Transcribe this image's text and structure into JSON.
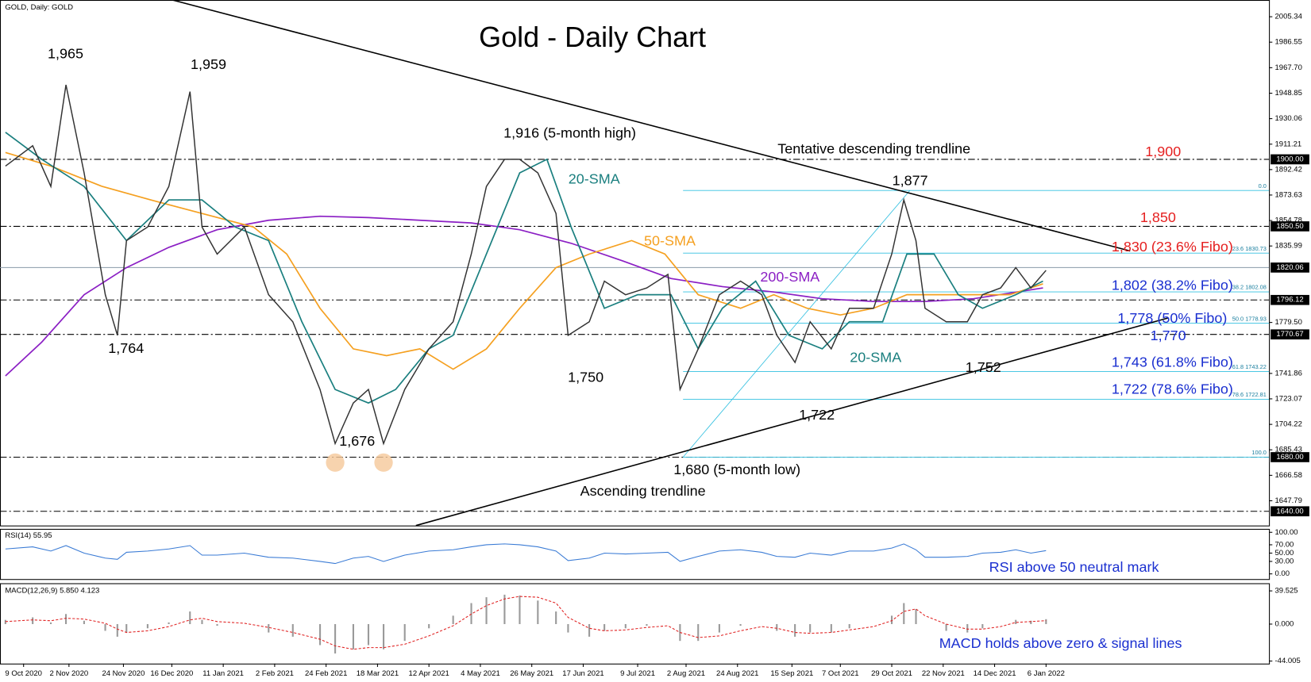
{
  "chart_data": {
    "type": "line",
    "title": "Gold - Daily Chart",
    "header": "GOLD, Daily: GOLD",
    "xlim": [
      -7.8,
      411.7
    ],
    "xticks": [
      {
        "value": 0,
        "label": "9 Oct 2020"
      },
      {
        "value": 15,
        "label": "2 Nov 2020"
      },
      {
        "value": 33,
        "label": "24 Nov 2020"
      },
      {
        "value": 49,
        "label": "16 Dec 2020"
      },
      {
        "value": 66,
        "label": "11 Jan 2021"
      },
      {
        "value": 83,
        "label": "2 Feb 2021"
      },
      {
        "value": 100,
        "label": "24 Feb 2021"
      },
      {
        "value": 117,
        "label": "18 Mar 2021"
      },
      {
        "value": 134,
        "label": "12 Apr 2021"
      },
      {
        "value": 151,
        "label": "4 May 2021"
      },
      {
        "value": 168,
        "label": "26 May 2021"
      },
      {
        "value": 185,
        "label": "17 Jun 2021"
      },
      {
        "value": 203,
        "label": "9 Jul 2021"
      },
      {
        "value": 219,
        "label": "2 Aug 2021"
      },
      {
        "value": 236,
        "label": "24 Aug 2021"
      },
      {
        "value": 254,
        "label": "15 Sep 2021"
      },
      {
        "value": 270,
        "label": "7 Oct 2021"
      },
      {
        "value": 287,
        "label": "29 Oct 2021"
      },
      {
        "value": 304,
        "label": "22 Nov 2021"
      },
      {
        "value": 321,
        "label": "14 Dec 2021"
      },
      {
        "value": 338,
        "label": "6 Jan 2022"
      }
    ],
    "ylim": [
      1629.5,
      2017.7
    ],
    "yticks": [
      2005.34,
      1986.55,
      {
        "value": 1967.7,
        "label": "1967.70"
      },
      1948.85,
      1930.06,
      1911.21,
      1892.42,
      1873.63,
      1854.78,
      1835.99,
      {
        "value": 1779.5,
        "label": "1779.50"
      },
      1741.86,
      1723.07,
      1704.22,
      1685.43,
      1666.58,
      1647.79
    ],
    "price_flags": [
      {
        "value": 1900,
        "label": "1900.00",
        "line": "dash-dot"
      },
      {
        "value": 1850.5,
        "label": "1850.50",
        "line": "dash-dot"
      },
      {
        "value": 1820.06,
        "line": "solid"
      },
      {
        "value": 1796.12,
        "line": "dash-dot"
      },
      {
        "value": 1770.67,
        "line": "dash-dot"
      },
      {
        "value": 1680,
        "label": "1680.00",
        "line": "dash-dot"
      },
      {
        "value": 1640,
        "label": "1640.00",
        "line": "dash-dot"
      }
    ],
    "series": [
      {
        "color": "#333333",
        "x": [
          -6,
          3,
          9,
          14,
          20,
          27,
          31,
          34,
          41,
          48,
          55,
          59,
          64,
          73,
          81,
          89,
          98,
          103,
          109,
          114,
          119,
          126,
          134,
          142,
          148,
          153,
          159,
          164,
          170,
          176,
          180,
          187,
          192,
          199,
          206,
          213,
          217,
          223,
          230,
          237,
          244,
          249,
          255,
          260,
          267,
          273,
          281,
          287,
          291,
          295,
          298,
          305,
          312,
          317,
          323,
          328,
          333,
          338
        ],
        "values": [
          1895,
          1910,
          1880,
          1955,
          1890,
          1800,
          1770,
          1840,
          1850,
          1880,
          1950,
          1850,
          1830,
          1850,
          1800,
          1780,
          1730,
          1690,
          1720,
          1730,
          1690,
          1730,
          1760,
          1780,
          1830,
          1880,
          1900,
          1900,
          1890,
          1860,
          1770,
          1780,
          1810,
          1800,
          1805,
          1815,
          1730,
          1760,
          1800,
          1810,
          1800,
          1770,
          1750,
          1780,
          1760,
          1790,
          1790,
          1830,
          1870,
          1840,
          1790,
          1780,
          1780,
          1800,
          1805,
          1820,
          1805,
          1818
        ]
      },
      {
        "color": "#1a7f7f",
        "x": [
          -6,
          6,
          20,
          34,
          48,
          59,
          70,
          81,
          92,
          103,
          114,
          123,
          134,
          142,
          153,
          164,
          173,
          181,
          192,
          203,
          214,
          223,
          231,
          242,
          253,
          264,
          273,
          284,
          292,
          301,
          309,
          317,
          328,
          337
        ],
        "values": [
          1920,
          1900,
          1880,
          1840,
          1870,
          1870,
          1850,
          1840,
          1780,
          1730,
          1720,
          1730,
          1760,
          1770,
          1830,
          1890,
          1900,
          1850,
          1790,
          1800,
          1800,
          1760,
          1790,
          1810,
          1770,
          1760,
          1780,
          1780,
          1830,
          1830,
          1800,
          1790,
          1800,
          1810
        ]
      },
      {
        "color": "#f5a020",
        "x": [
          -6,
          9,
          26,
          42,
          59,
          76,
          87,
          98,
          109,
          120,
          131,
          142,
          153,
          164,
          176,
          187,
          201,
          212,
          223,
          237,
          248,
          259,
          270,
          281,
          292,
          303,
          314,
          326,
          337
        ],
        "values": [
          1905,
          1895,
          1880,
          1870,
          1860,
          1850,
          1830,
          1790,
          1760,
          1755,
          1760,
          1745,
          1760,
          1790,
          1820,
          1830,
          1840,
          1830,
          1800,
          1790,
          1800,
          1790,
          1785,
          1790,
          1800,
          1800,
          1800,
          1800,
          1808
        ]
      },
      {
        "color": "#8b1fc4",
        "x": [
          -6,
          6,
          20,
          34,
          48,
          64,
          81,
          98,
          114,
          131,
          148,
          164,
          181,
          198,
          214,
          231,
          248,
          264,
          281,
          298,
          314,
          337
        ],
        "values": [
          1740,
          1765,
          1800,
          1820,
          1835,
          1848,
          1855,
          1858,
          1857,
          1855,
          1853,
          1848,
          1838,
          1825,
          1812,
          1806,
          1802,
          1797,
          1795,
          1795,
          1797,
          1805
        ]
      }
    ],
    "trendlines": [
      {
        "x": [
          49.2,
          365.8
        ],
        "values": [
          2017.7,
          1832.3
        ]
      },
      {
        "x": [
          129.7,
          378.3
        ],
        "values": [
          1629.5,
          1782.8
        ]
      }
    ],
    "fibonacci": {
      "x": [
        218,
        293
      ],
      "values": [
        1680,
        1877
      ],
      "levels": [
        {
          "value": 1877,
          "label": "0.0"
        },
        {
          "value": 1830.73,
          "label": "23.6 1830.73"
        },
        {
          "value": 1802.08,
          "label": "38.2 1802.08"
        },
        {
          "value": 1778.93,
          "label": "50.0 1778.93"
        },
        {
          "value": 1743.22,
          "label": "61.8 1743.22"
        },
        {
          "value": 1722.81,
          "label": "78.6 1722.81"
        },
        {
          "value": 1680,
          "label": "100.0"
        }
      ]
    },
    "highlights": {
      "x": [
        103,
        119
      ],
      "values": [
        1676,
        1676
      ]
    },
    "annotations": [
      {
        "text": "1,965",
        "color": "#000000"
      },
      {
        "text": "1,959",
        "color": "#000000"
      },
      {
        "text": "1,764",
        "color": "#000000"
      },
      {
        "text": "1,676",
        "color": "#000000"
      },
      {
        "text": "1,916 (5-month high)",
        "color": "#000000"
      },
      {
        "text": "20-SMA",
        "color": "#1a7f7f"
      },
      {
        "text": "50-SMA",
        "color": "#f5a020"
      },
      {
        "text": "200-SMA",
        "color": "#8b1fc4"
      },
      {
        "text": "1,750",
        "color": "#000000"
      },
      {
        "text": "1,680 (5-month low)",
        "color": "#000000"
      },
      {
        "text": "Ascending trendline",
        "color": "#000000"
      },
      {
        "text": "1,722",
        "color": "#000000"
      },
      {
        "text": "20-SMA",
        "color": "#1a7f7f"
      },
      {
        "text": "1,752",
        "color": "#000000"
      },
      {
        "text": "1,877",
        "color": "#000000"
      },
      {
        "text": "Tentative descending trendline",
        "color": "#000000"
      },
      {
        "text": "1,900",
        "color": "#e52020"
      },
      {
        "text": "1,850",
        "color": "#e52020"
      },
      {
        "text": "1,830 (23.6% Fibo)",
        "color": "#e52020"
      },
      {
        "text": "1,802 (38.2% Fibo)",
        "color": "#1a2fd0"
      },
      {
        "text": "1,778 (50% Fibo)",
        "color": "#1a2fd0"
      },
      {
        "text": "1,770",
        "color": "#1a2fd0"
      },
      {
        "text": "1,743 (61.8% Fibo)",
        "color": "#1a2fd0"
      },
      {
        "text": "1,722 (78.6% Fibo)",
        "color": "#1a2fd0"
      }
    ],
    "rsi": {
      "title": "RSI(14) 55.95",
      "color": "#3a7bd5",
      "ylim": [
        -12.5,
        108.3
      ],
      "yticks": [
        {
          "value": 100,
          "label": "100.00"
        },
        {
          "value": 70,
          "label": "70.00"
        },
        {
          "value": 50,
          "label": "50.00"
        },
        {
          "value": 30,
          "label": "30.00"
        },
        {
          "value": 0,
          "label": "0.00"
        }
      ],
      "values": [
        60,
        65,
        55,
        68,
        50,
        38,
        35,
        52,
        55,
        60,
        68,
        45,
        45,
        50,
        40,
        38,
        30,
        25,
        38,
        42,
        30,
        45,
        55,
        58,
        65,
        70,
        72,
        70,
        65,
        55,
        32,
        38,
        50,
        48,
        50,
        52,
        30,
        42,
        55,
        58,
        52,
        42,
        40,
        50,
        45,
        55,
        55,
        62,
        72,
        58,
        40,
        40,
        42,
        50,
        52,
        58,
        50,
        55.95
      ],
      "annotation": "RSI above 50 neutral mark"
    },
    "macd": {
      "title": "MACD(12,26,9) 5.850 4.123",
      "histogram_color": "#9a9a9a",
      "signal_color": "#e02020",
      "ylim": [
        -47,
        48.6
      ],
      "yticks": [
        39.525,
        {
          "value": 0,
          "label": "0.000"
        },
        -44.005
      ],
      "histogram": [
        5,
        8,
        2,
        12,
        4,
        -8,
        -15,
        -10,
        -5,
        2,
        15,
        5,
        -2,
        0,
        -10,
        -15,
        -25,
        -35,
        -30,
        -25,
        -30,
        -20,
        -5,
        10,
        25,
        32,
        35,
        34,
        28,
        15,
        -10,
        -15,
        -8,
        -5,
        -2,
        0,
        -20,
        -20,
        -10,
        -2,
        0,
        -8,
        -15,
        -10,
        -10,
        -5,
        0,
        10,
        25,
        18,
        0,
        -8,
        -10,
        -5,
        0,
        5,
        4,
        5.85
      ],
      "signal": [
        3,
        5,
        4,
        7,
        6,
        1,
        -6,
        -10,
        -8,
        -3,
        5,
        7,
        3,
        1,
        -4,
        -10,
        -18,
        -26,
        -30,
        -28,
        -28,
        -24,
        -14,
        -2,
        12,
        22,
        30,
        33,
        32,
        25,
        8,
        -5,
        -8,
        -7,
        -4,
        -2,
        -10,
        -16,
        -14,
        -8,
        -3,
        -5,
        -10,
        -11,
        -10,
        -7,
        -3,
        4,
        15,
        18,
        10,
        0,
        -6,
        -6,
        -3,
        2,
        3,
        4.123
      ],
      "annotation": "MACD holds above zero & signal lines"
    }
  }
}
